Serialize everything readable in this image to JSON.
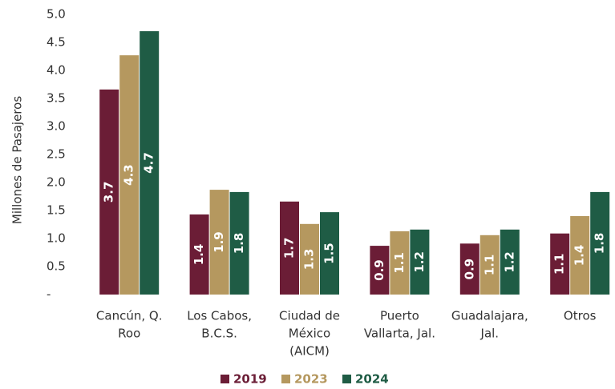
{
  "chart_data": {
    "type": "bar",
    "y_label": "Millones de Pasajeros",
    "categories": [
      [
        "Cancún, Q.",
        "Roo"
      ],
      [
        "Los Cabos,",
        "B.C.S."
      ],
      [
        "Ciudad de",
        "México",
        "(AICM)"
      ],
      [
        "Puerto",
        "Vallarta, Jal."
      ],
      [
        "Guadalajara,",
        "Jal."
      ],
      [
        "Otros"
      ]
    ],
    "series": [
      {
        "name": "2019",
        "color": "#6b1d36",
        "values": [
          3.66,
          1.43,
          1.66,
          0.87,
          0.91,
          1.09
        ],
        "value_labels": [
          "3.7",
          "1.4",
          "1.7",
          "0.9",
          "0.9",
          "1.1"
        ]
      },
      {
        "name": "2023",
        "color": "#b5985f",
        "values": [
          4.27,
          1.87,
          1.26,
          1.13,
          1.06,
          1.4
        ],
        "value_labels": [
          "4.3",
          "1.9",
          "1.3",
          "1.1",
          "1.1",
          "1.4"
        ]
      },
      {
        "name": "2024",
        "color": "#1f5c45",
        "values": [
          4.7,
          1.83,
          1.47,
          1.16,
          1.16,
          1.83
        ],
        "value_labels": [
          "4.7",
          "1.8",
          "1.5",
          "1.2",
          "1.2",
          "1.8"
        ]
      }
    ],
    "ylim": [
      0,
      5
    ],
    "yticks": [
      {
        "value": 0,
        "label": "-"
      },
      0.5,
      {
        "value": 1,
        "label": "1.0"
      },
      1.5,
      {
        "value": 2,
        "label": "2.0"
      },
      2.5,
      {
        "value": 3,
        "label": "3.0"
      },
      3.5,
      {
        "value": 4,
        "label": "4.0"
      },
      4.5,
      {
        "value": 5,
        "label": "5.0"
      }
    ],
    "legend": "bottom",
    "grid": false
  }
}
